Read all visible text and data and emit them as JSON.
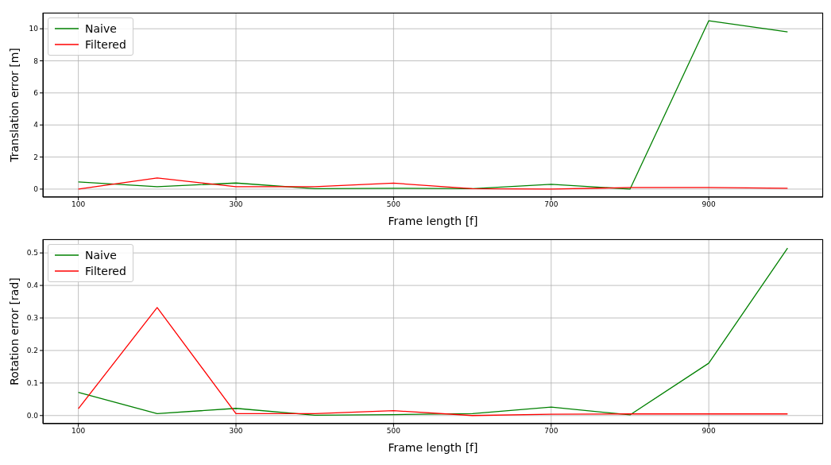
{
  "chart_data": [
    {
      "type": "line",
      "xlabel": "Frame length [f]",
      "ylabel": "Translation error [m]",
      "x": [
        100,
        200,
        300,
        400,
        500,
        600,
        700,
        800,
        900,
        1000
      ],
      "series": [
        {
          "name": "Naive",
          "color": "#008000",
          "values": [
            0.45,
            0.15,
            0.38,
            0.03,
            0.05,
            0.03,
            0.3,
            0.0,
            10.5,
            9.8
          ]
        },
        {
          "name": "Filtered",
          "color": "#ff0000",
          "values": [
            0.0,
            0.7,
            0.15,
            0.15,
            0.37,
            0.03,
            0.0,
            0.1,
            0.1,
            0.05
          ]
        }
      ],
      "xlim": [
        55,
        1045
      ],
      "xticks": [
        100,
        300,
        500,
        700,
        900
      ],
      "ylim": [
        -0.5,
        11
      ],
      "yticks": [
        0,
        2,
        4,
        6,
        8,
        10
      ],
      "grid": true,
      "legend": "top left",
      "marker": "none",
      "line_style": "solid"
    },
    {
      "type": "line",
      "xlabel": "Frame length [f]",
      "ylabel": "Rotation error [rad]",
      "x": [
        100,
        200,
        300,
        400,
        500,
        600,
        700,
        800,
        900,
        1000
      ],
      "series": [
        {
          "name": "Naive",
          "color": "#008000",
          "values": [
            0.071,
            0.006,
            0.022,
            0.001,
            0.003,
            0.006,
            0.026,
            0.002,
            0.161,
            0.515
          ]
        },
        {
          "name": "Filtered",
          "color": "#ff0000",
          "values": [
            0.021,
            0.332,
            0.006,
            0.006,
            0.015,
            0.0,
            0.004,
            0.005,
            0.005,
            0.005
          ]
        }
      ],
      "xlim": [
        55,
        1045
      ],
      "xticks": [
        100,
        300,
        500,
        700,
        900
      ],
      "ylim": [
        -0.025,
        0.542
      ],
      "yticks": [
        {
          "value": 0,
          "label": "0.0"
        },
        0.1,
        0.2,
        0.3,
        0.4,
        0.5
      ],
      "grid": true,
      "legend": "top left",
      "marker": "none",
      "line_style": "solid"
    }
  ]
}
